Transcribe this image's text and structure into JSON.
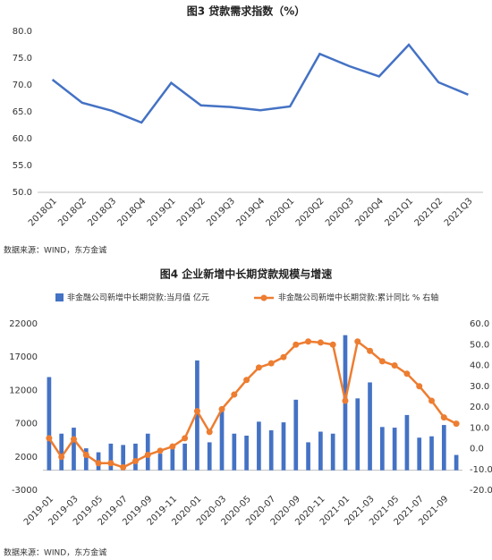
{
  "chart_data": [
    {
      "type": "line",
      "title": "图3  贷款需求指数（%）",
      "categories": [
        "2018Q1",
        "2018Q2",
        "2018Q3",
        "2018Q4",
        "2019Q1",
        "2019Q2",
        "2019Q3",
        "2019Q4",
        "2020Q1",
        "2020Q2",
        "2020Q3",
        "2020Q4",
        "2021Q1",
        "2021Q2",
        "2021Q3"
      ],
      "values": [
        71,
        66.7,
        65.2,
        63,
        70.4,
        66.2,
        65.9,
        65.3,
        66,
        75.8,
        73.5,
        71.6,
        77.5,
        70.5,
        68.2
      ],
      "color": "#4472c4",
      "ylim": [
        50,
        80
      ],
      "yticks": [
        {
          "value": 50,
          "label": "50.0"
        },
        {
          "value": 55,
          "label": "55.0"
        },
        {
          "value": 60,
          "label": "60.0"
        },
        {
          "value": 65,
          "label": "65.0"
        },
        {
          "value": 70,
          "label": "70.0"
        },
        {
          "value": 75,
          "label": "75.0"
        },
        {
          "value": 80,
          "label": "80.0"
        }
      ],
      "source": "数据来源：WIND，东方金诚"
    },
    {
      "type": "combo",
      "title": "图4  企业新增中长期贷款规模与增速",
      "categories": [
        "2019-01",
        null,
        "2019-03",
        null,
        "2019-05",
        null,
        "2019-07",
        null,
        "2019-09",
        null,
        "2019-11",
        null,
        "2020-01",
        null,
        "2020-03",
        null,
        "2020-05",
        null,
        "2020-07",
        null,
        "2020-09",
        null,
        "2020-11",
        null,
        "2021-01",
        null,
        "2021-03",
        null,
        "2021-05",
        null,
        "2021-07",
        null,
        "2021-09",
        null
      ],
      "series": [
        {
          "name": "非金融公司新增中长期贷款:当月值 亿元",
          "type": "bar",
          "color": "#4472c4",
          "values": [
            14000,
            5500,
            6400,
            3300,
            2700,
            4000,
            3800,
            4000,
            5500,
            2500,
            3600,
            4000,
            16500,
            4200,
            9000,
            5500,
            5200,
            7300,
            6000,
            7200,
            10600,
            4200,
            5800,
            5500,
            20300,
            10800,
            13200,
            6500,
            6400,
            8300,
            4900,
            5100,
            6800,
            2300
          ]
        },
        {
          "name": "非金融公司新增中长期贷款:累计同比 % 右轴",
          "type": "line",
          "axis": "y2",
          "color": "#ed7d31",
          "values": [
            5,
            -4,
            4.5,
            -3,
            -7,
            -7,
            -9,
            -6,
            -3,
            -1,
            1,
            5,
            18,
            8,
            19,
            26,
            33,
            39,
            41,
            44,
            50,
            51.5,
            51,
            50,
            23,
            51.5,
            47,
            42,
            40,
            36,
            30,
            23,
            15,
            12
          ]
        }
      ],
      "ylim": [
        -3000,
        22000
      ],
      "yticks": [
        -3000,
        2000,
        7000,
        12000,
        17000,
        22000
      ],
      "y2lim": [
        -20,
        60
      ],
      "y2ticks": [
        {
          "value": -20,
          "label": "-20.0"
        },
        {
          "value": -10,
          "label": "-10.0"
        },
        {
          "value": 0,
          "label": "0.0"
        },
        {
          "value": 10,
          "label": "10.0"
        },
        {
          "value": 20,
          "label": "20.0"
        },
        {
          "value": 30,
          "label": "30.0"
        },
        {
          "value": 40,
          "label": "40.0"
        },
        {
          "value": 50,
          "label": "50.0"
        },
        {
          "value": 60,
          "label": "60.0"
        }
      ],
      "source": "数据来源：WIND，东方金诚"
    }
  ]
}
